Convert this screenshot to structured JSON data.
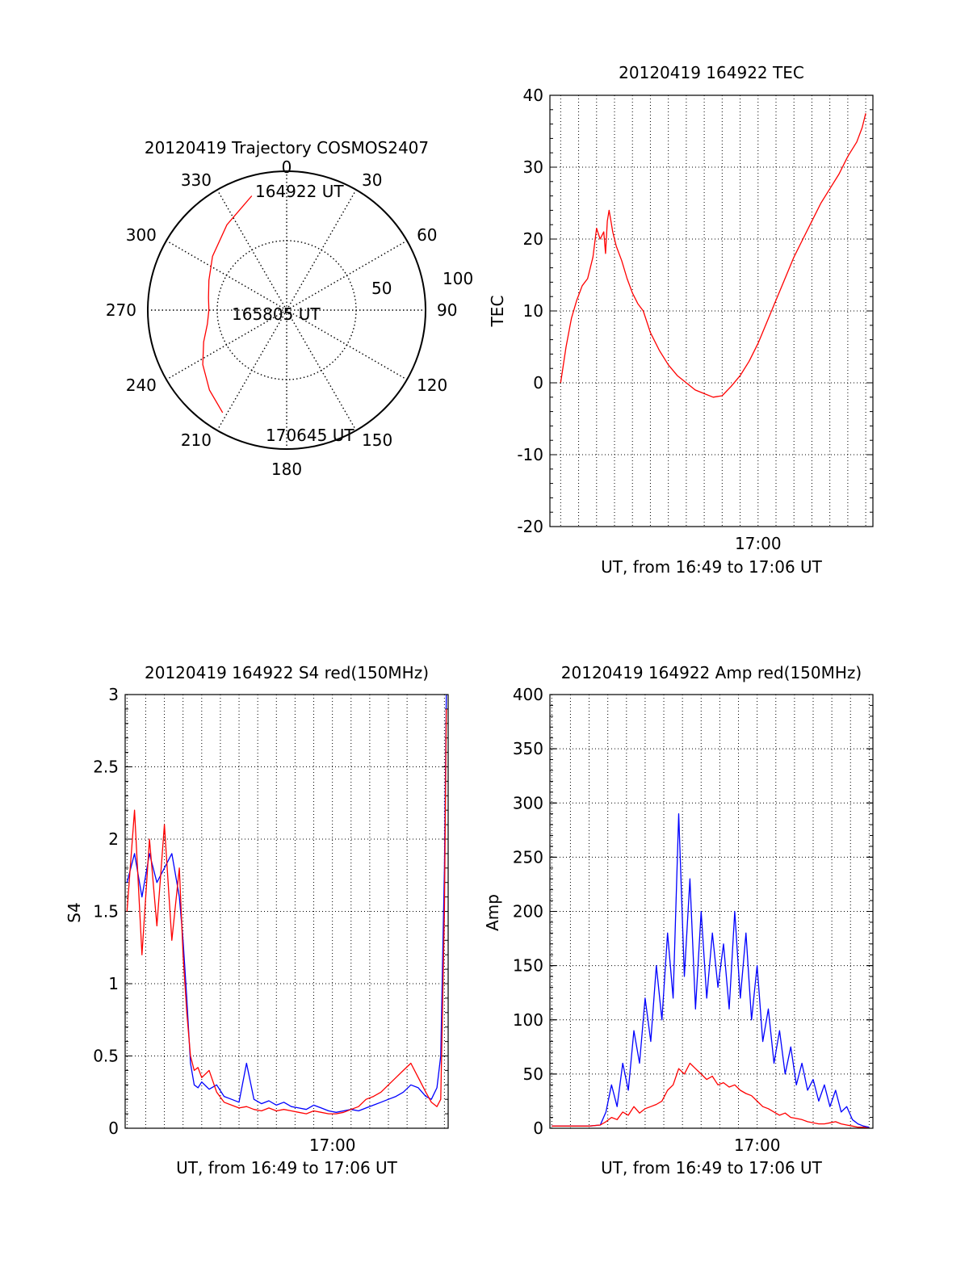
{
  "chart_data": [
    {
      "type": "polar",
      "title": "20120419 Trajectory COSMOS2407",
      "azimuth_labels": [
        "0",
        "30",
        "60",
        "90",
        "120",
        "150",
        "180",
        "210",
        "240",
        "270",
        "300",
        "330"
      ],
      "radial_labels": [
        "50",
        "100"
      ],
      "radial_values": [
        50,
        100
      ],
      "radial_max": 100,
      "point_labels": [
        "164922 UT",
        "165805 UT",
        "170645 UT"
      ],
      "series": [
        {
          "name": "",
          "color": "#ff0000",
          "azimuth_deg": [
            343,
            325,
            306,
            291,
            279,
            270,
            260,
            249,
            237,
            224,
            212
          ],
          "zenith_deg": [
            86,
            75,
            66,
            60,
            57,
            56,
            58,
            64,
            72,
            80,
            87
          ]
        }
      ]
    },
    {
      "type": "line",
      "title": "20120419 164922 TEC",
      "xlabel": "UT, from 16:49 to 17:06 UT",
      "ylabel": "TEC",
      "x_tick_labels": [
        {
          "x": 11.0,
          "label": "17:00"
        }
      ],
      "xlim": [
        -0.6,
        17.4
      ],
      "ylim": [
        -20,
        40
      ],
      "y_ticks": [
        -20,
        -10,
        0,
        10,
        20,
        30,
        40
      ],
      "x_grid": [
        0.0,
        1.0,
        2.0,
        3.0,
        4.0,
        5.0,
        6.0,
        7.0,
        8.0,
        9.0,
        10.0,
        11.0,
        12.0,
        13.0,
        14.0,
        15.0,
        16.0,
        17.0
      ],
      "grid": true,
      "series": [
        {
          "name": "",
          "color": "#ff0000",
          "x": [
            0.0,
            0.3,
            0.6,
            0.9,
            1.2,
            1.5,
            1.8,
            2.0,
            2.2,
            2.4,
            2.5,
            2.6,
            2.7,
            2.8,
            2.9,
            3.1,
            3.4,
            3.7,
            4.0,
            4.3,
            4.6,
            5.0,
            5.5,
            6.0,
            6.5,
            7.0,
            7.5,
            8.0,
            8.5,
            9.0,
            9.5,
            10.0,
            10.5,
            11.0,
            11.5,
            12.0,
            12.5,
            13.0,
            13.5,
            14.0,
            14.5,
            15.0,
            15.5,
            16.0,
            16.5,
            16.8,
            17.0
          ],
          "y": [
            0.0,
            5.0,
            9.0,
            11.5,
            13.5,
            14.5,
            17.5,
            21.5,
            20.0,
            21.0,
            18.0,
            22.5,
            24.0,
            22.5,
            21.0,
            19.0,
            17.0,
            14.5,
            12.5,
            11.0,
            10.0,
            7.0,
            4.5,
            2.5,
            1.0,
            0.0,
            -1.0,
            -1.5,
            -2.0,
            -1.8,
            -0.5,
            1.0,
            3.0,
            5.5,
            8.5,
            11.5,
            14.5,
            17.5,
            20.0,
            22.5,
            25.0,
            27.0,
            29.0,
            31.5,
            33.5,
            35.5,
            37.5
          ]
        }
      ]
    },
    {
      "type": "line",
      "title": "20120419 164922 S4 red(150MHz)",
      "xlabel": "UT, from 16:49 to 17:06 UT",
      "ylabel": "S4",
      "x_tick_labels": [
        {
          "x": 11.0,
          "label": "17:00"
        }
      ],
      "xlim": [
        -0.1,
        17.2
      ],
      "ylim": [
        0,
        3
      ],
      "y_ticks": [
        0,
        0.5,
        1,
        1.5,
        2,
        2.5,
        3
      ],
      "y_tick_labels": [
        "0",
        "0.5",
        "1",
        "1.5",
        "2",
        "2.5",
        "3"
      ],
      "x_grid": [
        0.0,
        1.0,
        2.0,
        3.0,
        4.0,
        5.0,
        6.0,
        7.0,
        8.0,
        9.0,
        10.0,
        11.0,
        12.0,
        13.0,
        14.0,
        15.0,
        16.0,
        17.0
      ],
      "grid": true,
      "series": [
        {
          "name": "",
          "color": "#0000ff",
          "x": [
            0.0,
            0.4,
            0.8,
            1.2,
            1.6,
            2.0,
            2.4,
            2.8,
            3.0,
            3.2,
            3.4,
            3.6,
            3.8,
            4.0,
            4.4,
            4.8,
            5.2,
            5.6,
            6.0,
            6.4,
            6.8,
            7.2,
            7.6,
            8.0,
            8.4,
            8.8,
            9.2,
            9.6,
            10.0,
            10.4,
            10.8,
            11.2,
            11.6,
            12.0,
            12.4,
            12.8,
            13.2,
            13.6,
            14.0,
            14.4,
            14.8,
            15.2,
            15.6,
            16.0,
            16.3,
            16.6,
            16.8,
            17.0,
            17.1
          ],
          "y": [
            1.7,
            1.9,
            1.6,
            1.9,
            1.7,
            1.8,
            1.9,
            1.6,
            1.3,
            0.9,
            0.45,
            0.3,
            0.28,
            0.32,
            0.27,
            0.3,
            0.22,
            0.2,
            0.18,
            0.45,
            0.2,
            0.17,
            0.19,
            0.16,
            0.18,
            0.15,
            0.14,
            0.13,
            0.16,
            0.14,
            0.12,
            0.11,
            0.12,
            0.13,
            0.12,
            0.14,
            0.16,
            0.18,
            0.2,
            0.22,
            0.25,
            0.3,
            0.28,
            0.22,
            0.2,
            0.28,
            0.5,
            1.8,
            3.0
          ]
        },
        {
          "name": "",
          "color": "#ff0000",
          "x": [
            0.0,
            0.4,
            0.8,
            1.2,
            1.6,
            2.0,
            2.4,
            2.8,
            3.0,
            3.2,
            3.4,
            3.6,
            3.8,
            4.0,
            4.4,
            4.8,
            5.2,
            5.6,
            6.0,
            6.4,
            6.8,
            7.2,
            7.6,
            8.0,
            8.4,
            8.8,
            9.2,
            9.6,
            10.0,
            10.4,
            10.8,
            11.2,
            11.6,
            12.0,
            12.4,
            12.8,
            13.2,
            13.6,
            14.0,
            14.4,
            14.8,
            15.2,
            15.6,
            16.0,
            16.3,
            16.6,
            16.8,
            17.0,
            17.1
          ],
          "y": [
            1.5,
            2.2,
            1.2,
            2.0,
            1.4,
            2.1,
            1.3,
            1.8,
            1.2,
            0.8,
            0.5,
            0.4,
            0.42,
            0.35,
            0.4,
            0.25,
            0.18,
            0.16,
            0.14,
            0.15,
            0.13,
            0.12,
            0.14,
            0.12,
            0.13,
            0.12,
            0.11,
            0.1,
            0.12,
            0.11,
            0.1,
            0.1,
            0.11,
            0.13,
            0.15,
            0.2,
            0.22,
            0.25,
            0.3,
            0.35,
            0.4,
            0.45,
            0.35,
            0.25,
            0.18,
            0.15,
            0.2,
            1.5,
            2.9
          ]
        }
      ]
    },
    {
      "type": "line",
      "title": "20120419 164922 Amp red(150MHz)",
      "xlabel": "UT, from 16:49 to 17:06 UT",
      "ylabel": "Amp",
      "x_tick_labels": [
        {
          "x": 11.0,
          "label": "17:00"
        }
      ],
      "xlim": [
        -0.1,
        17.2
      ],
      "ylim": [
        0,
        400
      ],
      "y_ticks": [
        0,
        50,
        100,
        150,
        200,
        250,
        300,
        350,
        400
      ],
      "x_grid": [
        0.0,
        1.0,
        2.0,
        3.0,
        4.0,
        5.0,
        6.0,
        7.0,
        8.0,
        9.0,
        10.0,
        11.0,
        12.0,
        13.0,
        14.0,
        15.0,
        16.0,
        17.0
      ],
      "grid": true,
      "series": [
        {
          "name": "",
          "color": "#0000ff",
          "x": [
            0.0,
            1.0,
            2.0,
            2.6,
            2.9,
            3.2,
            3.5,
            3.8,
            4.1,
            4.4,
            4.7,
            5.0,
            5.3,
            5.6,
            5.9,
            6.2,
            6.5,
            6.8,
            7.1,
            7.4,
            7.7,
            8.0,
            8.3,
            8.6,
            8.9,
            9.2,
            9.5,
            9.8,
            10.1,
            10.4,
            10.7,
            11.0,
            11.3,
            11.6,
            11.9,
            12.2,
            12.5,
            12.8,
            13.1,
            13.4,
            13.7,
            14.0,
            14.3,
            14.6,
            14.9,
            15.2,
            15.5,
            15.8,
            16.1,
            16.4,
            16.7,
            17.0
          ],
          "y": [
            2,
            2,
            2,
            3,
            15,
            40,
            20,
            60,
            35,
            90,
            60,
            120,
            80,
            150,
            100,
            180,
            120,
            290,
            140,
            230,
            110,
            200,
            120,
            180,
            130,
            170,
            110,
            200,
            120,
            180,
            100,
            150,
            80,
            110,
            60,
            90,
            50,
            75,
            40,
            60,
            35,
            45,
            25,
            40,
            20,
            35,
            15,
            20,
            8,
            4,
            2,
            1
          ]
        },
        {
          "name": "",
          "color": "#ff0000",
          "x": [
            0.0,
            1.0,
            2.0,
            2.6,
            2.9,
            3.2,
            3.5,
            3.8,
            4.1,
            4.4,
            4.7,
            5.0,
            5.3,
            5.6,
            5.9,
            6.2,
            6.5,
            6.8,
            7.1,
            7.4,
            7.7,
            8.0,
            8.3,
            8.6,
            8.9,
            9.2,
            9.5,
            9.8,
            10.1,
            10.4,
            10.7,
            11.0,
            11.3,
            11.6,
            11.9,
            12.2,
            12.5,
            12.8,
            13.1,
            13.4,
            13.7,
            14.0,
            14.3,
            14.6,
            14.9,
            15.2,
            15.5,
            15.8,
            16.1,
            16.4,
            16.7,
            17.0
          ],
          "y": [
            2,
            2,
            2,
            3,
            6,
            10,
            8,
            15,
            12,
            20,
            14,
            18,
            20,
            22,
            25,
            35,
            40,
            55,
            50,
            60,
            55,
            50,
            45,
            48,
            40,
            42,
            38,
            40,
            35,
            32,
            30,
            25,
            20,
            18,
            15,
            12,
            14,
            10,
            9,
            8,
            6,
            5,
            4,
            4,
            5,
            6,
            4,
            3,
            2,
            1,
            1,
            0
          ]
        }
      ]
    }
  ]
}
